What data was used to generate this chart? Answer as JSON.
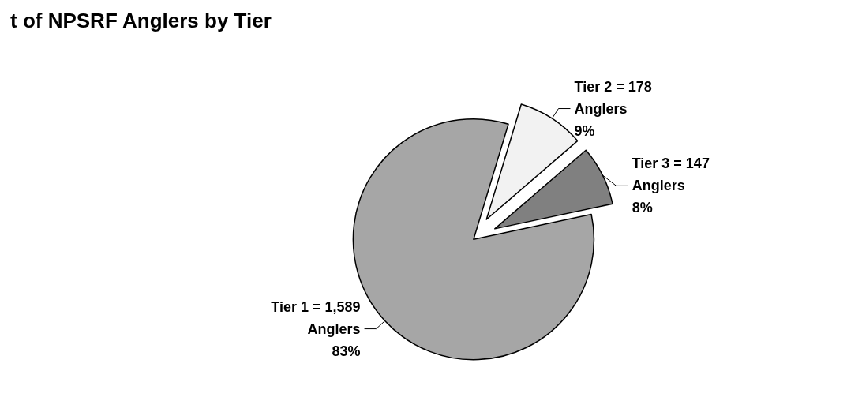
{
  "chart_data": {
    "type": "pie",
    "title": "t of NPSRF Anglers by Tier",
    "categories": [
      "Tier 1 = 1,589\nAnglers",
      "Tier 2 = 178\nAnglers",
      "Tier 3 = 147\nAnglers"
    ],
    "values": [
      83,
      9,
      8
    ],
    "value_labels": [
      "83%",
      "9%",
      "8%"
    ],
    "colors": [
      "#a6a6a6",
      "#f2f2f2",
      "#808080"
    ]
  }
}
